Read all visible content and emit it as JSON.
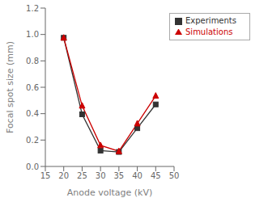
{
  "chart_data": {
    "type": "line",
    "xlabel": "Anode voltage (kV)",
    "ylabel": "Focal spot size (mm)",
    "xlim": [
      15,
      50
    ],
    "ylim": [
      0,
      1.2
    ],
    "xticks": [
      15,
      20,
      25,
      30,
      35,
      40,
      45,
      50
    ],
    "yticks": [
      {
        "value": 0,
        "label": "0.0"
      },
      0.2,
      0.4,
      0.6,
      0.8,
      {
        "value": 1,
        "label": "1.0"
      },
      1.2
    ],
    "x": [
      20,
      25,
      30,
      35,
      40,
      45
    ],
    "series": [
      {
        "name": "Experiments",
        "color": "#333333",
        "marker": "square",
        "values": [
          0.975,
          0.395,
          0.12,
          0.11,
          0.29,
          0.47
        ]
      },
      {
        "name": "Simulations",
        "color": "#cc0000",
        "marker": "triangle",
        "values": [
          0.975,
          0.46,
          0.16,
          0.115,
          0.325,
          0.535
        ]
      }
    ],
    "legend": "upper right",
    "grid": false
  }
}
